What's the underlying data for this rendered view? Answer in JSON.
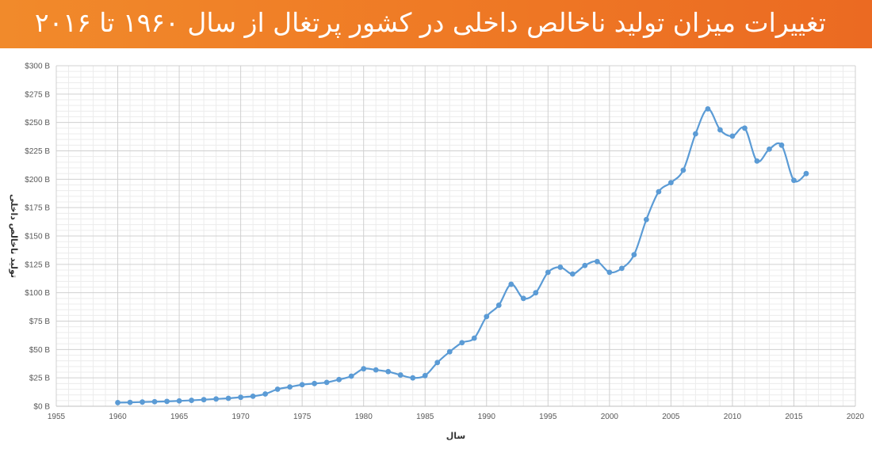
{
  "title": "تغییرات میزان تولید ناخالص داخلی در کشور پرتغال از سال ۱۹۶۰ تا ۲۰۱۶",
  "colors": {
    "header_start": "#f18a2b",
    "header_end": "#eb6a22",
    "series": "#5b9bd5"
  },
  "chart_data": {
    "type": "line",
    "title": "تغییرات میزان تولید ناخالص داخلی در کشور پرتغال از سال ۱۹۶۰ تا ۲۰۱۶",
    "xlabel": "سال",
    "ylabel": "تولید ناخالص داخلی",
    "xlim": [
      1955,
      2020
    ],
    "ylim": [
      0,
      300
    ],
    "x_ticks": [
      "1955",
      "1960",
      "1965",
      "1970",
      "1975",
      "1980",
      "1985",
      "1990",
      "1995",
      "2000",
      "2005",
      "2010",
      "2015",
      "2020"
    ],
    "y_ticks": [
      "$0 B",
      "$25 B",
      "$50 B",
      "$75 B",
      "$100 B",
      "$125 B",
      "$150 B",
      "$175 B",
      "$200 B",
      "$225 B",
      "$250 B",
      "$275 B",
      "$300 B"
    ],
    "grid": true,
    "minor_grid": true,
    "smooth": true,
    "series": [
      {
        "x": [
          1960,
          1961,
          1962,
          1963,
          1964,
          1965,
          1966,
          1967,
          1968,
          1969,
          1970,
          1971,
          1972,
          1973,
          1974,
          1975,
          1976,
          1977,
          1978,
          1979,
          1980,
          1981,
          1982,
          1983,
          1984,
          1985,
          1986,
          1987,
          1988,
          1989,
          1990,
          1991,
          1992,
          1993,
          1994,
          1995,
          1996,
          1997,
          1998,
          1999,
          2000,
          2001,
          2002,
          2003,
          2004,
          2005,
          2006,
          2007,
          2008,
          2009,
          2010,
          2011,
          2012,
          2013,
          2014,
          2015,
          2016
        ],
        "y": [
          3.2,
          3.4,
          3.7,
          4.0,
          4.3,
          4.7,
          5.2,
          5.8,
          6.4,
          7.0,
          7.9,
          8.8,
          10.8,
          15.0,
          17.0,
          19.0,
          20.0,
          21.0,
          23.5,
          26.5,
          33.0,
          32.0,
          30.5,
          27.5,
          25.0,
          27.0,
          38.5,
          48.0,
          56.0,
          60.0,
          79.0,
          89.0,
          107.5,
          95.0,
          100.0,
          118.0,
          122.5,
          116.5,
          124.0,
          127.5,
          118.0,
          121.5,
          133.5,
          164.5,
          189.0,
          197.0,
          208.0,
          240.0,
          262.0,
          243.5,
          238.0,
          245.0,
          216.0,
          226.5,
          230.0,
          199.0,
          205.0
        ]
      }
    ]
  }
}
